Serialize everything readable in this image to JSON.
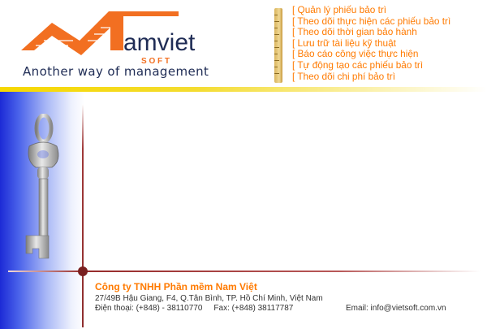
{
  "logo": {
    "brand": "amviet",
    "sub": "S O F T",
    "tagline": "Another way of management",
    "colors": {
      "orange": "#f26f21",
      "navy": "#1f2c55"
    }
  },
  "features": [
    "[ Quản lý phiếu bảo trì",
    "[ Theo dõi thực hiện các phiếu bảo trì",
    "[ Theo dõi thời gian bảo hành",
    "[ Lưu trữ tài liệu kỹ thuật",
    "[ Báo cáo công việc thực hiện",
    "[ Tự động tạo các phiếu bảo trì",
    "[ Theo dõi chi phí bảo trì"
  ],
  "images": {
    "ruler": "ruler-icon",
    "key": "key-icon"
  },
  "footer": {
    "company": "Công ty TNHH Phần mềm Nam Việt",
    "address": "27/49B Hậu Giang, F4, Q.Tân Bình, TP. Hồ Chí Minh, Việt Nam",
    "phone": "Điện thoại:  (+848) - 38110770",
    "fax": "Fax: (+848) 38117787",
    "email": "Email: info@vietsoft.com.vn"
  }
}
